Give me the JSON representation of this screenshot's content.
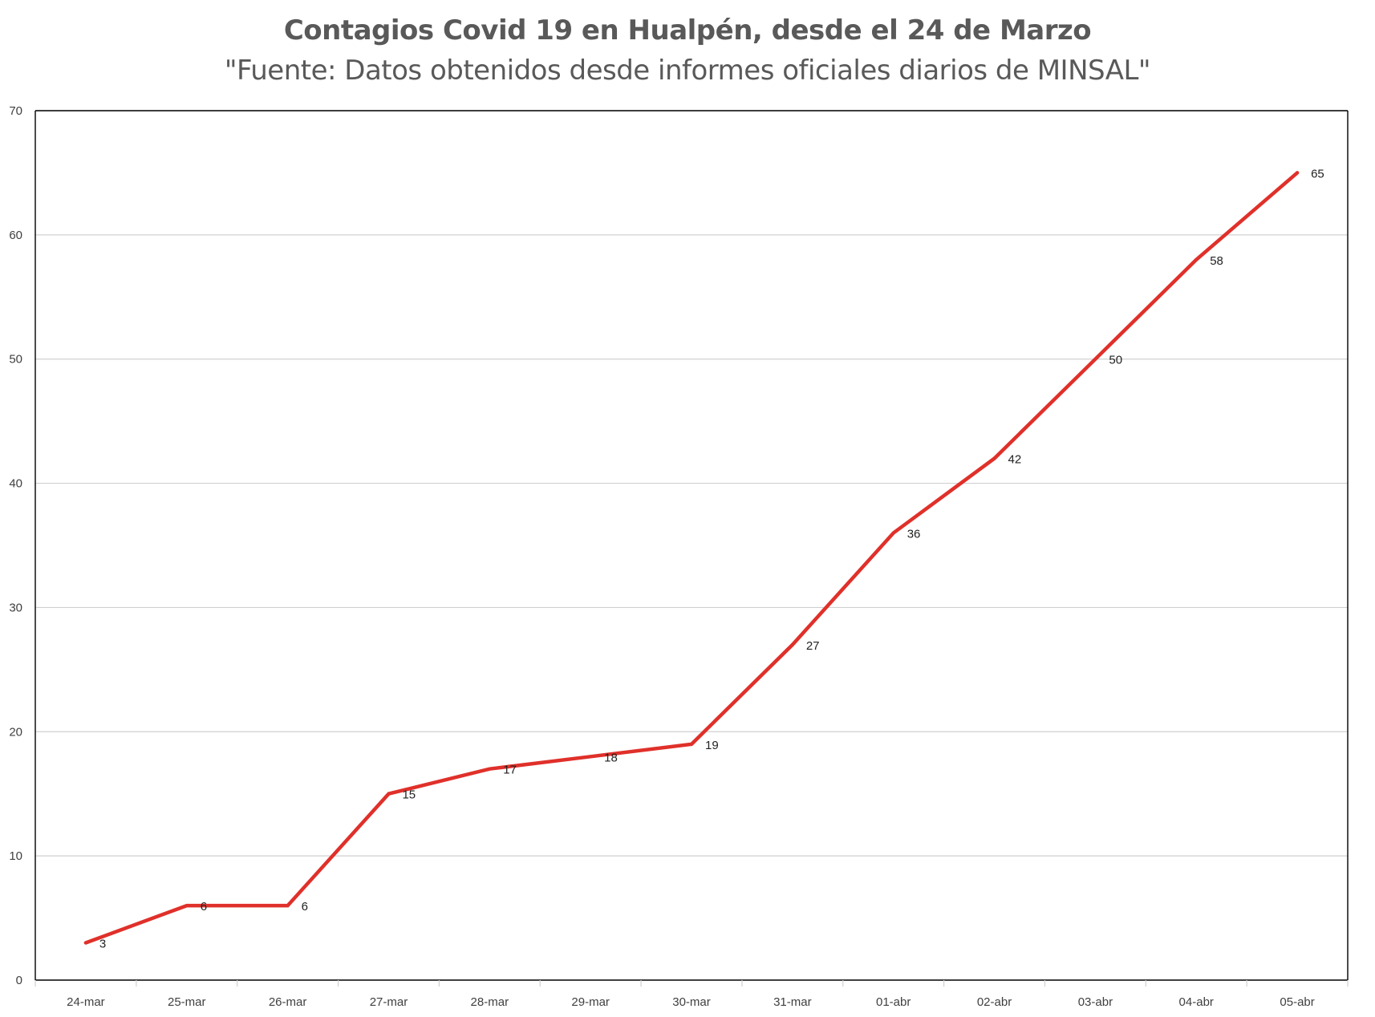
{
  "chart_data": {
    "type": "line",
    "title": "Contagios Covid 19 en Hualpén, desde el 24 de Marzo",
    "subtitle": "\"Fuente: Datos obtenidos desde informes oficiales diarios de MINSAL\"",
    "xlabel": "",
    "ylabel": "",
    "categories": [
      "24-mar",
      "25-mar",
      "26-mar",
      "27-mar",
      "28-mar",
      "29-mar",
      "30-mar",
      "31-mar",
      "01-abr",
      "02-abr",
      "03-abr",
      "04-abr",
      "05-abr"
    ],
    "series": [
      {
        "values": [
          3,
          6,
          6,
          15,
          17,
          18,
          19,
          27,
          36,
          42,
          50,
          58,
          65
        ],
        "color": "#e0302a",
        "data_labels": [
          "3",
          "6",
          "6",
          "15",
          "17",
          "18",
          "19",
          "27",
          "36",
          "42",
          "50",
          "58",
          "65"
        ]
      }
    ],
    "ylim": [
      0,
      70
    ],
    "yticks": [
      0,
      10,
      20,
      30,
      40,
      50,
      60,
      70
    ],
    "ytick_labels": [
      "0",
      "10",
      "20",
      "30",
      "40",
      "50",
      "60",
      "70"
    ],
    "grid": true,
    "legend": "none",
    "colors": {
      "line": "#e0302a",
      "grid": "#d0d0d0",
      "axis": "#000000",
      "title": "#595959"
    }
  }
}
